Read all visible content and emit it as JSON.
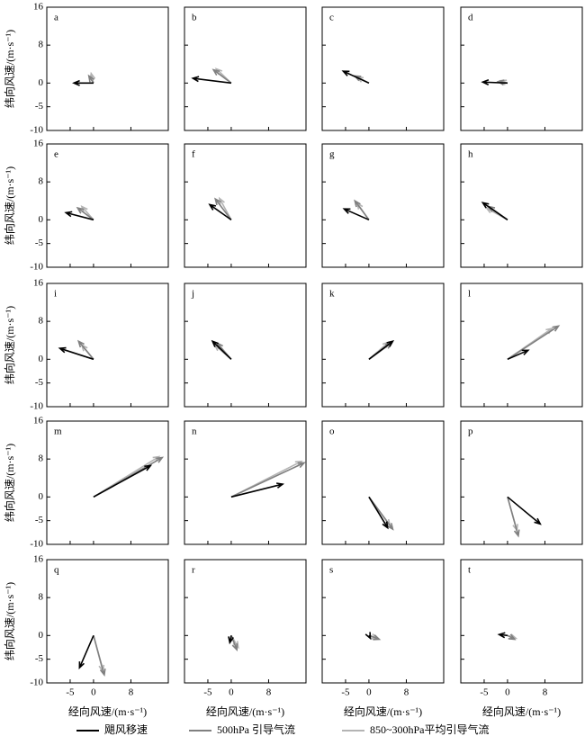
{
  "chart_data": {
    "type": "vector",
    "panels": [
      "a",
      "b",
      "c",
      "d",
      "e",
      "f",
      "g",
      "h",
      "i",
      "j",
      "k",
      "l",
      "m",
      "n",
      "o",
      "p",
      "q",
      "r",
      "s",
      "t"
    ],
    "xlabel": "经向风速/(m·s⁻¹)",
    "ylabel": "纬向风速/(m·s⁻¹)",
    "xlim": [
      -10,
      16
    ],
    "ylim": [
      -10,
      16
    ],
    "xticks": [
      -5,
      0,
      8
    ],
    "yticks": [
      -10,
      -5,
      0,
      8,
      16
    ],
    "series": [
      {
        "name": "飓风移速",
        "color": "#000000",
        "u": [
          -4.2,
          -8.2,
          -5.5,
          -5.3,
          -5.9,
          -4.6,
          -5.3,
          -5.3,
          -7.2,
          -4,
          5.1,
          4.4,
          12.2,
          11,
          4,
          7,
          -3,
          -0.3,
          0.3,
          -1.8
        ],
        "v": [
          0,
          1,
          2.5,
          0.2,
          1.5,
          3.2,
          2.3,
          3.6,
          2.3,
          3.8,
          3.8,
          1.9,
          6.6,
          2.7,
          -6.5,
          -5.7,
          -6.8,
          -1.5,
          -0.6,
          0.2
        ]
      },
      {
        "name": "500hPa 引导气流",
        "color": "#808080",
        "u": [
          -1,
          -3.8,
          -3,
          -2,
          -3.4,
          -3.4,
          -3,
          -4,
          -3.2,
          -3,
          4.8,
          10.9,
          14.7,
          15.6,
          5.1,
          2.3,
          2.3,
          1.2,
          2.2,
          1.5
        ],
        "v": [
          1.5,
          2.8,
          1.5,
          0.3,
          2.5,
          4.4,
          4,
          2.8,
          3.8,
          3.4,
          3.4,
          7,
          8.3,
          7.2,
          -6.8,
          -8.2,
          -8.3,
          -3,
          -0.8,
          -0.8
        ]
      },
      {
        "name": "850~300hPa平均引导气流",
        "color": "#b4b4b4",
        "u": [
          -0.5,
          -3.2,
          -2.5,
          -1.5,
          -2.5,
          -2.5,
          -2.5,
          -4.5,
          -2.5,
          -3.5,
          4.2,
          9.5,
          14,
          15,
          4.5,
          2,
          2,
          1.5,
          1.8,
          1.8
        ],
        "v": [
          2,
          3,
          1.2,
          0.5,
          2.8,
          4.5,
          3.5,
          2.5,
          3,
          3,
          3.6,
          6.5,
          8.5,
          7.5,
          -6,
          -7,
          -7.5,
          -2.5,
          -0.5,
          -0.6
        ]
      }
    ]
  }
}
